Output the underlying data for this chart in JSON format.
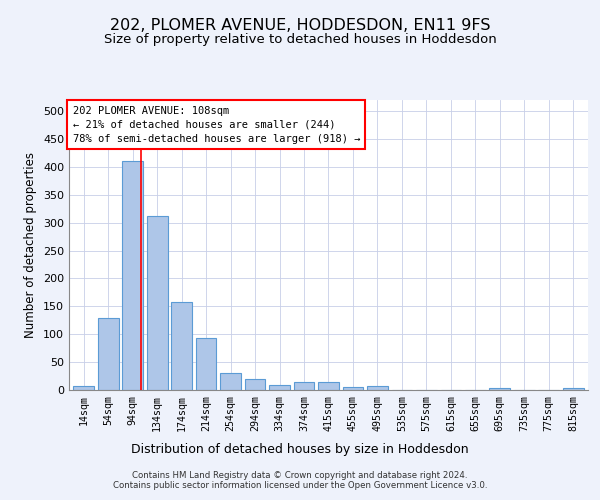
{
  "title": "202, PLOMER AVENUE, HODDESDON, EN11 9FS",
  "subtitle": "Size of property relative to detached houses in Hoddesdon",
  "xlabel": "Distribution of detached houses by size in Hoddesdon",
  "ylabel": "Number of detached properties",
  "bar_labels": [
    "14sqm",
    "54sqm",
    "94sqm",
    "134sqm",
    "174sqm",
    "214sqm",
    "254sqm",
    "294sqm",
    "334sqm",
    "374sqm",
    "415sqm",
    "455sqm",
    "495sqm",
    "535sqm",
    "575sqm",
    "615sqm",
    "655sqm",
    "695sqm",
    "735sqm",
    "775sqm",
    "815sqm"
  ],
  "bar_values": [
    7,
    130,
    410,
    312,
    157,
    93,
    30,
    20,
    9,
    15,
    15,
    6,
    7,
    0,
    0,
    0,
    0,
    3,
    0,
    0,
    3
  ],
  "bar_color": "#aec6e8",
  "bar_edgecolor": "#5b9bd5",
  "annotation_box_text_line1": "202 PLOMER AVENUE: 108sqm",
  "annotation_box_text_line2": "← 21% of detached houses are smaller (244)",
  "annotation_box_text_line3": "78% of semi-detached houses are larger (918) →",
  "ylim": [
    0,
    520
  ],
  "yticks": [
    0,
    50,
    100,
    150,
    200,
    250,
    300,
    350,
    400,
    450,
    500
  ],
  "footer_line1": "Contains HM Land Registry data © Crown copyright and database right 2024.",
  "footer_line2": "Contains public sector information licensed under the Open Government Licence v3.0.",
  "background_color": "#eef2fb",
  "plot_background": "#ffffff",
  "grid_color": "#c8cfe8",
  "title_fontsize": 11.5,
  "subtitle_fontsize": 9.5,
  "xlabel_fontsize": 9,
  "ylabel_fontsize": 8.5
}
